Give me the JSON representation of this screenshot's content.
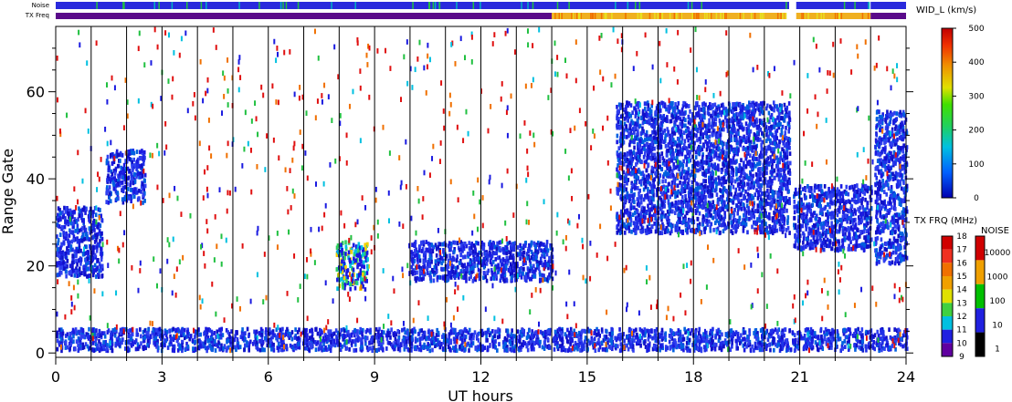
{
  "chart_data": {
    "type": "heatmap",
    "xlabel": "UT hours",
    "ylabel": "Range Gate",
    "xlim": [
      0,
      24
    ],
    "ylim": [
      -1,
      75
    ],
    "x_ticks": [
      0,
      3,
      6,
      9,
      12,
      15,
      18,
      21,
      24
    ],
    "y_ticks": [
      0,
      20,
      40,
      60
    ],
    "vertical_lines_hours": [
      1,
      2,
      3,
      4,
      5,
      6,
      7,
      8,
      9,
      10,
      11,
      12,
      13,
      14,
      15,
      16,
      17,
      18,
      19,
      20,
      21,
      22,
      23
    ],
    "bands": {
      "noise_label": "Noise",
      "txfreq_label": "TX Freq",
      "noise_color": "#2a2adc",
      "noise_gaps_hours": [
        [
          20.7,
          20.9
        ],
        [
          22.95,
          23.0
        ]
      ],
      "txfreq_segments": [
        {
          "start": 0,
          "end": 14.0,
          "color": "#5a0a8a"
        },
        {
          "start": 14.0,
          "end": 20.6,
          "color": "#f0b020"
        },
        {
          "start": 20.9,
          "end": 23.0,
          "color": "#f0b020"
        },
        {
          "start": 23.0,
          "end": 24.0,
          "color": "#5a0a8a"
        }
      ]
    },
    "colorbars": {
      "width": {
        "title": "WID_L (km/s)",
        "ticks": [
          "500",
          "400",
          "300",
          "200",
          "100",
          "0"
        ],
        "min": 0,
        "max": 500
      },
      "txfreq": {
        "title": "TX FRQ (MHz)",
        "ticks": [
          "18",
          "17",
          "16",
          "15",
          "14",
          "13",
          "12",
          "11",
          "10",
          "9"
        ],
        "colors": [
          "#d00000",
          "#f03020",
          "#f07000",
          "#f0a000",
          "#e0e000",
          "#40d040",
          "#00c0e0",
          "#2020e0",
          "#6000a0"
        ]
      },
      "noise": {
        "title": "NOISE",
        "ticks": [
          "10000",
          "1000",
          "100",
          "10",
          "1"
        ],
        "colors": [
          "#d00000",
          "#f0a000",
          "#00c000",
          "#2020e0",
          "#000000"
        ]
      }
    },
    "series": [
      {
        "ut_range": [
          0.0,
          1.3
        ],
        "gate_range": [
          17,
          33
        ],
        "level": "low"
      },
      {
        "ut_range": [
          1.4,
          2.5
        ],
        "gate_range": [
          34,
          46
        ],
        "level": "low"
      },
      {
        "ut_range": [
          0.0,
          24.0
        ],
        "gate_range": [
          0,
          5
        ],
        "level": "low"
      },
      {
        "ut_range": [
          7.9,
          8.8
        ],
        "gate_range": [
          14,
          25
        ],
        "level": "mixed"
      },
      {
        "ut_range": [
          10.0,
          14.0
        ],
        "gate_range": [
          16,
          25
        ],
        "level": "low"
      },
      {
        "ut_range": [
          15.8,
          20.7
        ],
        "gate_range": [
          27,
          57
        ],
        "level": "low"
      },
      {
        "ut_range": [
          20.8,
          23.0
        ],
        "gate_range": [
          23,
          38
        ],
        "level": "low"
      },
      {
        "ut_range": [
          23.1,
          24.0
        ],
        "gate_range": [
          20,
          55
        ],
        "level": "low"
      }
    ]
  }
}
